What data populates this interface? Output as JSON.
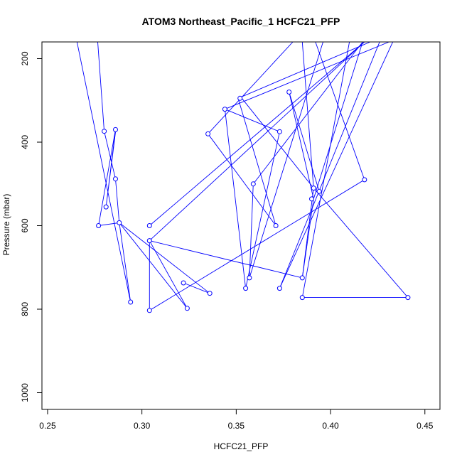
{
  "chart_data": {
    "type": "line",
    "title": "ATOM3 Northeast_Pacific_1 HCFC21_PFP",
    "xlabel": "HCFC21_PFP",
    "ylabel": "Pressure (mbar)",
    "xlim": [
      0.247,
      0.458
    ],
    "ylim": [
      1040,
      160
    ],
    "y_reversed": true,
    "x_ticks": [
      0.25,
      0.3,
      0.35,
      0.4,
      0.45
    ],
    "x_tick_labels": [
      "0.25",
      "0.30",
      "0.35",
      "0.40",
      "0.45"
    ],
    "y_ticks": [
      200,
      400,
      600,
      800,
      1000
    ],
    "y_tick_labels": [
      "200",
      "400",
      "600",
      "800",
      "1000"
    ],
    "series_color": "#0000ff",
    "grid": false,
    "legend": "none",
    "series": [
      {
        "points": [
          {
            "x": 0.264,
            "y": 125
          },
          {
            "x": 0.294,
            "y": 783
          },
          {
            "x": 0.288,
            "y": 593
          },
          {
            "x": 0.277,
            "y": 600
          },
          {
            "x": 0.286,
            "y": 370
          },
          {
            "x": 0.281,
            "y": 555
          },
          {
            "x": 0.286,
            "y": 376
          }
        ]
      },
      {
        "points": [
          {
            "x": 0.276,
            "y": 125
          },
          {
            "x": 0.28,
            "y": 374
          },
          {
            "x": 0.286,
            "y": 488
          },
          {
            "x": 0.288,
            "y": 593
          },
          {
            "x": 0.324,
            "y": 798
          },
          {
            "x": 0.304,
            "y": 636
          },
          {
            "x": 0.385,
            "y": 725
          },
          {
            "x": 0.391,
            "y": 536
          },
          {
            "x": 0.378,
            "y": 280
          },
          {
            "x": 0.394,
            "y": 518
          }
        ]
      },
      {
        "points": [
          {
            "x": 0.288,
            "y": 593
          },
          {
            "x": 0.336,
            "y": 762
          },
          {
            "x": 0.322,
            "y": 737
          },
          {
            "x": 0.336,
            "y": 762
          }
        ]
      },
      {
        "points": [
          {
            "x": 0.304,
            "y": 600
          },
          {
            "x": 0.418,
            "y": 160
          },
          {
            "x": 0.304,
            "y": 636
          }
        ]
      },
      {
        "points": [
          {
            "x": 0.304,
            "y": 636
          },
          {
            "x": 0.304,
            "y": 803
          },
          {
            "x": 0.418,
            "y": 490
          },
          {
            "x": 0.392,
            "y": 160
          }
        ]
      },
      {
        "points": [
          {
            "x": 0.335,
            "y": 380
          },
          {
            "x": 0.38,
            "y": 160
          }
        ]
      },
      {
        "points": [
          {
            "x": 0.335,
            "y": 380
          },
          {
            "x": 0.371,
            "y": 600
          },
          {
            "x": 0.351,
            "y": 295
          },
          {
            "x": 0.421,
            "y": 160
          }
        ]
      },
      {
        "points": [
          {
            "x": 0.344,
            "y": 321
          },
          {
            "x": 0.355,
            "y": 750
          },
          {
            "x": 0.373,
            "y": 375
          },
          {
            "x": 0.344,
            "y": 321
          }
        ]
      },
      {
        "points": [
          {
            "x": 0.344,
            "y": 321
          },
          {
            "x": 0.431,
            "y": 160
          }
        ]
      },
      {
        "points": [
          {
            "x": 0.357,
            "y": 725
          },
          {
            "x": 0.359,
            "y": 500
          },
          {
            "x": 0.417,
            "y": 160
          }
        ]
      },
      {
        "points": [
          {
            "x": 0.357,
            "y": 725
          },
          {
            "x": 0.396,
            "y": 160
          }
        ]
      },
      {
        "points": [
          {
            "x": 0.353,
            "y": 295
          },
          {
            "x": 0.391,
            "y": 510
          },
          {
            "x": 0.385,
            "y": 160
          }
        ]
      },
      {
        "points": [
          {
            "x": 0.373,
            "y": 750
          },
          {
            "x": 0.426,
            "y": 160
          }
        ]
      },
      {
        "points": [
          {
            "x": 0.373,
            "y": 750
          },
          {
            "x": 0.433,
            "y": 160
          }
        ]
      },
      {
        "points": [
          {
            "x": 0.385,
            "y": 772
          },
          {
            "x": 0.441,
            "y": 772
          },
          {
            "x": 0.391,
            "y": 510
          },
          {
            "x": 0.385,
            "y": 725
          }
        ]
      },
      {
        "points": [
          {
            "x": 0.385,
            "y": 772
          },
          {
            "x": 0.41,
            "y": 160
          }
        ]
      },
      {
        "points": [
          {
            "x": 0.391,
            "y": 536
          },
          {
            "x": 0.417,
            "y": 160
          }
        ]
      }
    ],
    "markers": [
      {
        "x": 0.28,
        "y": 374
      },
      {
        "x": 0.286,
        "y": 370
      },
      {
        "x": 0.286,
        "y": 488
      },
      {
        "x": 0.281,
        "y": 555
      },
      {
        "x": 0.288,
        "y": 593
      },
      {
        "x": 0.277,
        "y": 600
      },
      {
        "x": 0.294,
        "y": 783
      },
      {
        "x": 0.304,
        "y": 600
      },
      {
        "x": 0.304,
        "y": 636
      },
      {
        "x": 0.304,
        "y": 803
      },
      {
        "x": 0.324,
        "y": 798
      },
      {
        "x": 0.322,
        "y": 737
      },
      {
        "x": 0.336,
        "y": 762
      },
      {
        "x": 0.335,
        "y": 380
      },
      {
        "x": 0.344,
        "y": 321
      },
      {
        "x": 0.352,
        "y": 295
      },
      {
        "x": 0.355,
        "y": 750
      },
      {
        "x": 0.357,
        "y": 725
      },
      {
        "x": 0.359,
        "y": 500
      },
      {
        "x": 0.371,
        "y": 600
      },
      {
        "x": 0.373,
        "y": 375
      },
      {
        "x": 0.373,
        "y": 750
      },
      {
        "x": 0.378,
        "y": 280
      },
      {
        "x": 0.385,
        "y": 725
      },
      {
        "x": 0.385,
        "y": 772
      },
      {
        "x": 0.39,
        "y": 536
      },
      {
        "x": 0.391,
        "y": 510
      },
      {
        "x": 0.394,
        "y": 518
      },
      {
        "x": 0.418,
        "y": 490
      },
      {
        "x": 0.441,
        "y": 772
      }
    ]
  }
}
